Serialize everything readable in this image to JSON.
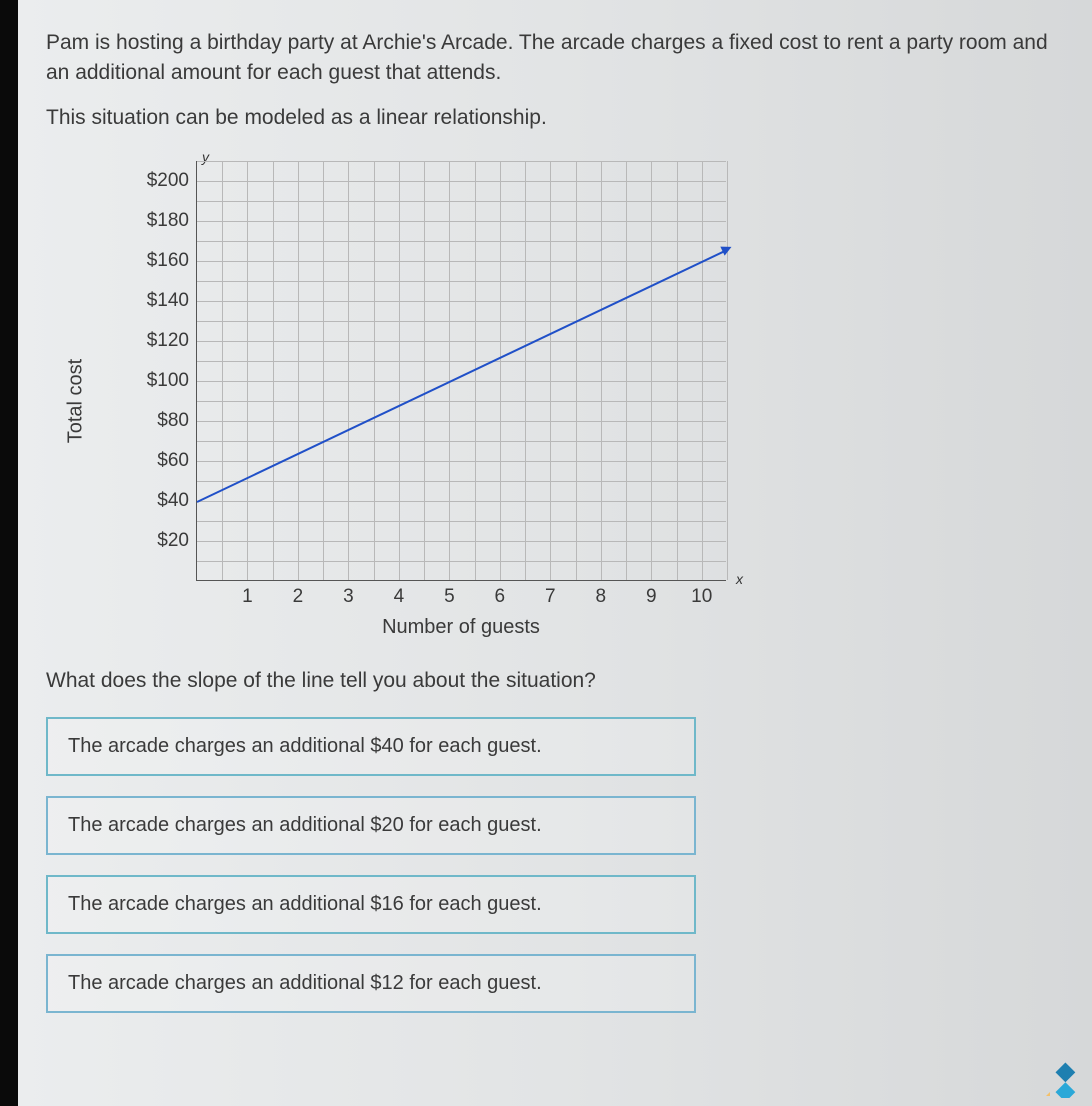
{
  "problem": {
    "p1": "Pam is hosting a birthday party at Archie's Arcade. The arcade charges a fixed cost to rent a party room and an additional amount for each guest that attends.",
    "p2": "This situation can be modeled as a linear relationship."
  },
  "chart": {
    "type": "line",
    "ylabel": "Total cost",
    "xlabel": "Number of guests",
    "y_axis_symbol": "y",
    "x_axis_symbol": "x",
    "xlim": [
      0,
      10.5
    ],
    "ylim": [
      0,
      210
    ],
    "xticks": [
      1,
      2,
      3,
      4,
      5,
      6,
      7,
      8,
      9,
      10
    ],
    "yticks": [
      20,
      40,
      60,
      80,
      100,
      120,
      140,
      160,
      180,
      200
    ],
    "ytick_labels": [
      "$20",
      "$40",
      "$60",
      "$80",
      "$100",
      "$120",
      "$140",
      "$160",
      "$180",
      "$200"
    ],
    "x_minor_step": 0.5,
    "y_minor_step": 10,
    "line_points": [
      [
        0,
        40
      ],
      [
        10.5,
        166
      ]
    ],
    "line_color": "#2050c8",
    "line_width": 2,
    "grid_color": "#b8b8b8",
    "background_color": "transparent",
    "tick_fontsize": 19,
    "label_fontsize": 20
  },
  "question": "What does the slope of the line tell you about the situation?",
  "choices": [
    "The arcade charges an additional $40 for each guest.",
    "The arcade charges an additional $20 for each guest.",
    "The arcade charges an additional $16 for each guest.",
    "The arcade charges an additional $12 for each guest."
  ],
  "choice_border_color": "#6fb8c9"
}
